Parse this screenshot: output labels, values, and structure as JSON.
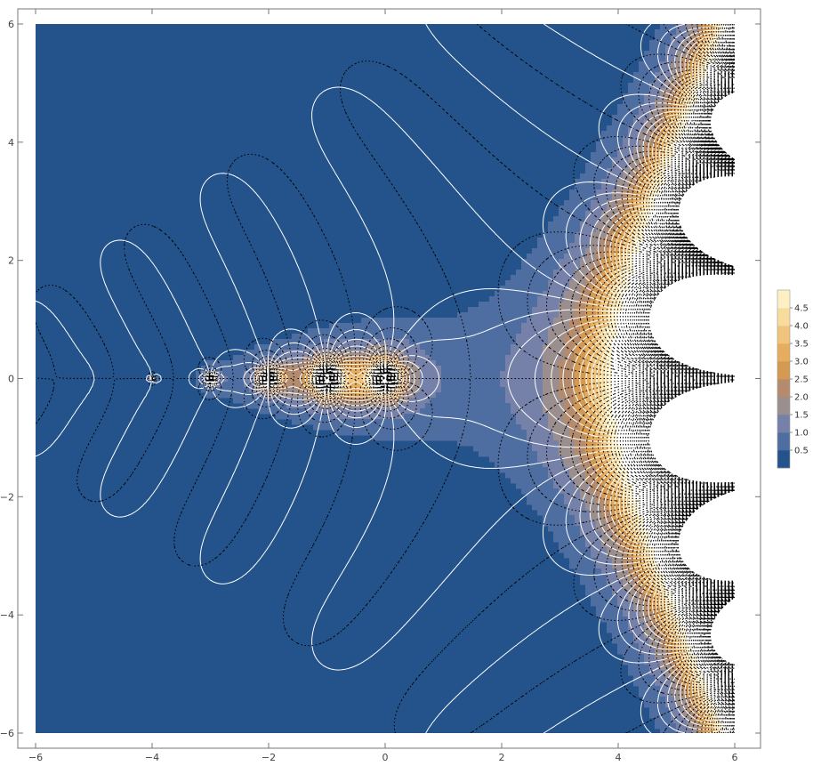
{
  "chart_data": {
    "type": "contour",
    "title": "",
    "xlabel": "",
    "ylabel": "",
    "xlim": [
      -6,
      6
    ],
    "ylim": [
      -6,
      6
    ],
    "x_ticks": [
      -6,
      -4,
      -2,
      0,
      2,
      4,
      6
    ],
    "y_ticks": [
      -6,
      -4,
      -2,
      0,
      2,
      4,
      6
    ],
    "x_tick_labels": [
      "−6",
      "−4",
      "−2",
      "0",
      "2",
      "4",
      "6"
    ],
    "y_tick_labels": [
      "−6",
      "−4",
      "−2",
      "0",
      "2",
      "4",
      "6"
    ],
    "poles": [
      0,
      -1,
      -2,
      -3,
      -4
    ],
    "legend": {
      "placement": "right",
      "levels": [
        0.5,
        1.0,
        1.5,
        2.0,
        2.5,
        3.0,
        3.5,
        4.0,
        4.5
      ],
      "level_labels": [
        "0.5",
        "1.0",
        "1.5",
        "2.0",
        "2.5",
        "3.0",
        "3.5",
        "4.0",
        "4.5"
      ],
      "colors": [
        "#23538a",
        "#4e6ea1",
        "#7581a8",
        "#9a8e8f",
        "#b48c6d",
        "#d49a52",
        "#e6ad5e",
        "#f0c47c",
        "#f8dc9e",
        "#fdf0c4"
      ]
    },
    "colors": {
      "background_fill": "#23538a",
      "contour_solid": "#ffffff",
      "contour_dotted": "#000000",
      "saturated_region": "#ffffff"
    },
    "grid": false
  }
}
